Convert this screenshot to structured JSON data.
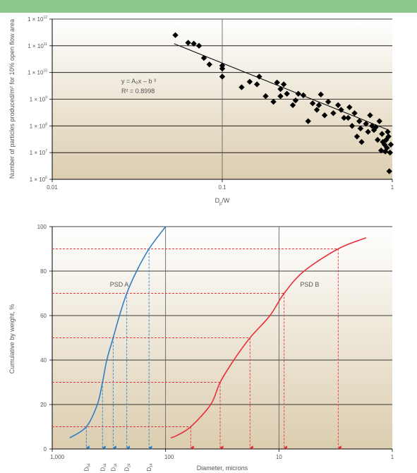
{
  "colors": {
    "bar": "#8cc88c",
    "plot_bg_top": "#ffffff",
    "plot_bg_bottom": "#dccdaf",
    "psd_a": "#2f7fc4",
    "psd_b": "#e8303a",
    "marker": "#000000"
  },
  "chart_data": [
    {
      "type": "scatter",
      "title": "",
      "xlabel": "D_p/W",
      "xlabel_main": "D",
      "xlabel_sub": "p",
      "xlabel_rest": "/W",
      "ylabel": "Number of particles produced/m² for 10% open flow area",
      "xscale": "log",
      "yscale": "log",
      "xlim": [
        0.01,
        1
      ],
      "ylim": [
        1000000,
        1000000000000
      ],
      "x_ticks": [
        {
          "value": 0.01,
          "label": "0.01"
        },
        {
          "value": 0.1,
          "label": "0.1"
        },
        {
          "value": 1,
          "label": "1"
        }
      ],
      "y_ticks": [
        {
          "value": 1000000,
          "mant": "1 × 10",
          "exp": "6"
        },
        {
          "value": 10000000,
          "mant": "1 × 10",
          "exp": "7"
        },
        {
          "value": 100000000,
          "mant": "1 × 10",
          "exp": "8"
        },
        {
          "value": 1000000000,
          "mant": "1 × 10",
          "exp": "9"
        },
        {
          "value": 10000000000,
          "mant": "1 × 10",
          "exp": "10"
        },
        {
          "value": 100000000000,
          "mant": "1 × 10",
          "exp": "11"
        },
        {
          "value": 1000000000000,
          "mant": "1 × 10",
          "exp": "12"
        }
      ],
      "equation": "y = A₀x – b ³",
      "r2": "R² = 0.8998",
      "fit_line": [
        [
          0.052,
          120000000000
        ],
        [
          0.95,
          70000000
        ]
      ],
      "points": [
        [
          0.053,
          250000000000
        ],
        [
          0.063,
          130000000000
        ],
        [
          0.068,
          120000000000
        ],
        [
          0.073,
          100000000000
        ],
        [
          0.078,
          35000000000
        ],
        [
          0.084,
          20000000000
        ],
        [
          0.1,
          18000000000
        ],
        [
          0.1,
          14000000000
        ],
        [
          0.1,
          7000000000
        ],
        [
          0.13,
          2800000000
        ],
        [
          0.145,
          4500000000
        ],
        [
          0.16,
          3600000000
        ],
        [
          0.165,
          7000000000
        ],
        [
          0.18,
          1300000000
        ],
        [
          0.2,
          800000000
        ],
        [
          0.21,
          4200000000
        ],
        [
          0.22,
          2400000000
        ],
        [
          0.23,
          3600000000
        ],
        [
          0.22,
          1300000000
        ],
        [
          0.24,
          1600000000
        ],
        [
          0.26,
          600000000
        ],
        [
          0.27,
          900000000
        ],
        [
          0.28,
          1600000000
        ],
        [
          0.3,
          1400000000
        ],
        [
          0.32,
          150000000
        ],
        [
          0.34,
          700000000
        ],
        [
          0.36,
          400000000
        ],
        [
          0.37,
          600000000
        ],
        [
          0.38,
          1500000000
        ],
        [
          0.4,
          250000000
        ],
        [
          0.42,
          800000000
        ],
        [
          0.45,
          300000000
        ],
        [
          0.48,
          600000000
        ],
        [
          0.5,
          400000000
        ],
        [
          0.52,
          200000000
        ],
        [
          0.55,
          200000000
        ],
        [
          0.56,
          500000000
        ],
        [
          0.58,
          100000000
        ],
        [
          0.6,
          300000000
        ],
        [
          0.62,
          40000000
        ],
        [
          0.64,
          150000000
        ],
        [
          0.65,
          80000000
        ],
        [
          0.66,
          25000000
        ],
        [
          0.7,
          120000000
        ],
        [
          0.72,
          60000000
        ],
        [
          0.74,
          250000000
        ],
        [
          0.76,
          100000000
        ],
        [
          0.78,
          70000000
        ],
        [
          0.8,
          90000000
        ],
        [
          0.82,
          30000000
        ],
        [
          0.84,
          150000000
        ],
        [
          0.86,
          12000000
        ],
        [
          0.87,
          50000000
        ],
        [
          0.88,
          25000000
        ],
        [
          0.9,
          20000000
        ],
        [
          0.91,
          11000000
        ],
        [
          0.92,
          30000000
        ],
        [
          0.93,
          15000000
        ],
        [
          0.94,
          60000000
        ],
        [
          0.95,
          40000000
        ],
        [
          0.96,
          2000000
        ],
        [
          0.97,
          10000000
        ],
        [
          0.98,
          20000000
        ]
      ]
    },
    {
      "type": "line",
      "title": "",
      "xlabel": "Diameter, microns",
      "ylabel": "Cumulative by weight, %",
      "xscale": "log",
      "xreversed": true,
      "xlim": [
        1000,
        1
      ],
      "ylim": [
        0,
        100
      ],
      "x_ticks": [
        {
          "value": 1000,
          "label": "1,000"
        },
        {
          "value": 100,
          "label": "100"
        },
        {
          "value": 10,
          "label": "10"
        },
        {
          "value": 1,
          "label": "1"
        }
      ],
      "y_ticks": [
        0,
        20,
        40,
        60,
        80,
        100
      ],
      "series": [
        {
          "name": "PSD A",
          "points": [
            [
              700,
              5
            ],
            [
              500,
              10
            ],
            [
              400,
              20
            ],
            [
              360,
              30
            ],
            [
              330,
              40
            ],
            [
              290,
              50
            ],
            [
              255,
              60
            ],
            [
              220,
              70
            ],
            [
              180,
              80
            ],
            [
              140,
              90
            ],
            [
              100,
              100
            ]
          ]
        },
        {
          "name": "PSD B",
          "points": [
            [
              90,
              5
            ],
            [
              80,
              6
            ],
            [
              60,
              10
            ],
            [
              40,
              20
            ],
            [
              33,
              30
            ],
            [
              25,
              40
            ],
            [
              18,
              50
            ],
            [
              12,
              60
            ],
            [
              9,
              70
            ],
            [
              6,
              80
            ],
            [
              3,
              90
            ],
            [
              1.7,
              95
            ]
          ]
        }
      ],
      "reference_lines": {
        "psd_a": [
          {
            "y": 10,
            "x": 500
          },
          {
            "y": 30,
            "x": 360
          },
          {
            "y": 50,
            "x": 290
          },
          {
            "y": 70,
            "x": 220
          },
          {
            "y": 90,
            "x": 140
          }
        ],
        "psd_b": [
          {
            "y": 10,
            "x": 60
          },
          {
            "y": 30,
            "x": 33
          },
          {
            "y": 50,
            "x": 18
          },
          {
            "y": 70,
            "x": 9
          },
          {
            "y": 90,
            "x": 3
          }
        ]
      },
      "d_labels": [
        {
          "x": 500,
          "main": "D",
          "sub": "54"
        },
        {
          "x": 360,
          "main": "D",
          "sub": "44"
        },
        {
          "x": 290,
          "main": "D",
          "sub": "34"
        },
        {
          "x": 220,
          "main": "D",
          "sub": "24"
        },
        {
          "x": 140,
          "main": "D",
          "sub": "14"
        }
      ]
    }
  ]
}
